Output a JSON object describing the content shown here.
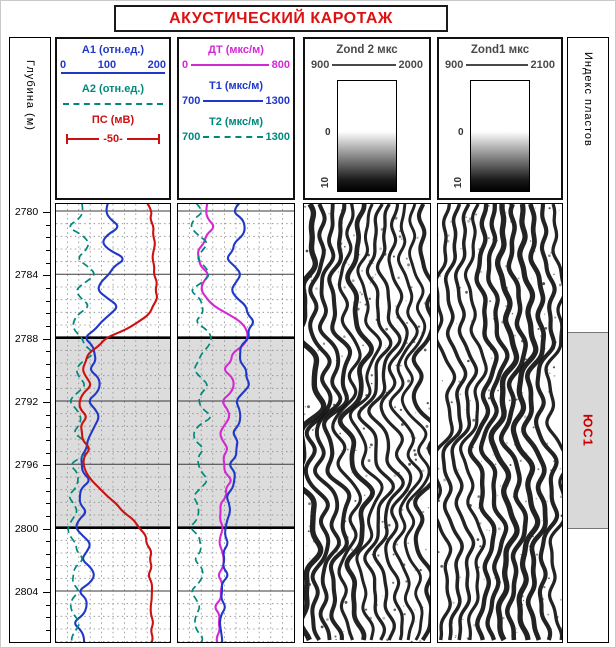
{
  "title": "АКУСТИЧЕСКИЙ КАРОТАЖ",
  "depth_column": {
    "label": "Глубина (м)",
    "ticks": [
      "2780",
      "2784",
      "2788",
      "2792",
      "2796",
      "2800",
      "2804"
    ]
  },
  "index_column": {
    "label": "Индекс пластов",
    "zone_label": "ЮС1"
  },
  "headers": {
    "track1": {
      "a1_label": "А1 (отн.ед.)",
      "a1_scale": [
        "0",
        "100",
        "200"
      ],
      "a2_label": "А2 (отн.ед.)",
      "ps_label": "ПС (мВ)",
      "ps_scale": "-50-"
    },
    "track2": {
      "dt_label": "ДТ (мкс/м)",
      "dt_scale": [
        "0",
        "800"
      ],
      "t1_label": "Т1 (мкс/м)",
      "t1_scale": [
        "700",
        "1300"
      ],
      "t2_label": "Т2 (мкс/м)",
      "t2_scale": [
        "700",
        "1300"
      ]
    },
    "track3": {
      "title": "Zond 2 мкс",
      "scale": [
        "900",
        "2000"
      ],
      "gradient_ticks": [
        "0",
        "10"
      ]
    },
    "track4": {
      "title": "Zond1 мкс",
      "scale": [
        "900",
        "2100"
      ],
      "gradient_ticks": [
        "0",
        "10"
      ]
    }
  },
  "colors": {
    "title": "#dd1111",
    "a1": "#2038c8",
    "a2": "#00897b",
    "ps": "#cc1111",
    "dt": "#d428d4",
    "t1": "#2038c8",
    "t2": "#00897b",
    "zone_fill": "#dcdcdc",
    "index_red": "#cc0000"
  },
  "chart_data": {
    "type": "line",
    "title": "АКУСТИЧЕСКИЙ КАРОТАЖ",
    "depth_axis": {
      "label": "Глубина (м)",
      "units": "м",
      "start": 2779,
      "step": 1,
      "ticks": [
        2780,
        2784,
        2788,
        2792,
        2796,
        2800,
        2804
      ]
    },
    "zone": {
      "name": "ЮС1",
      "top": 2788,
      "bottom": 2800
    },
    "tracks": [
      {
        "name": "Track 1",
        "series": [
          {
            "name": "А1",
            "units": "отн.ед.",
            "range": [
              0,
              200
            ],
            "color_key": "a1",
            "style": "solid",
            "values_frac": [
              0.5,
              0.42,
              0.55,
              0.38,
              0.6,
              0.45,
              0.35,
              0.55,
              0.4,
              0.25,
              0.35,
              0.3,
              0.4,
              0.28,
              0.38,
              0.3,
              0.25,
              0.2,
              0.28,
              0.18,
              0.25,
              0.15,
              0.3,
              0.22,
              0.35,
              0.2,
              0.28,
              0.15,
              0.25,
              0.2
            ]
          },
          {
            "name": "А2",
            "units": "отн.ед.",
            "range": [
              0,
              200
            ],
            "color_key": "a2",
            "style": "dashed",
            "values_frac": [
              0.15,
              0.25,
              0.1,
              0.3,
              0.18,
              0.35,
              0.15,
              0.28,
              0.12,
              0.2,
              0.32,
              0.15,
              0.25,
              0.1,
              0.22,
              0.15,
              0.3,
              0.12,
              0.2,
              0.1,
              0.18,
              0.08,
              0.15,
              0.22,
              0.12,
              0.18,
              0.1,
              0.2,
              0.12,
              0.15
            ]
          },
          {
            "name": "ПС",
            "units": "мВ",
            "scale_per_division": 50,
            "color_key": "ps",
            "style": "solid",
            "values_frac": [
              0.82,
              0.84,
              0.86,
              0.88,
              0.86,
              0.88,
              0.9,
              0.88,
              0.75,
              0.45,
              0.28,
              0.22,
              0.3,
              0.18,
              0.25,
              0.2,
              0.28,
              0.22,
              0.3,
              0.45,
              0.6,
              0.75,
              0.82,
              0.85,
              0.83,
              0.86,
              0.84,
              0.86,
              0.85,
              0.86
            ]
          }
        ]
      },
      {
        "name": "Track 2",
        "series": [
          {
            "name": "ДТ",
            "units": "мкс/м",
            "range": [
              0,
              800
            ],
            "color_key": "dt",
            "style": "solid",
            "values_frac": [
              0.28,
              0.22,
              0.3,
              0.2,
              0.15,
              0.25,
              0.18,
              0.3,
              0.55,
              0.62,
              0.48,
              0.4,
              0.5,
              0.38,
              0.45,
              0.35,
              0.42,
              0.38,
              0.45,
              0.4,
              0.35,
              0.38,
              0.35,
              0.4,
              0.35,
              0.38,
              0.32,
              0.36,
              0.33,
              0.35
            ]
          },
          {
            "name": "Т1",
            "units": "мкс/м",
            "range": [
              700,
              1300
            ],
            "color_key": "t1",
            "style": "solid",
            "values_frac": [
              0.55,
              0.48,
              0.6,
              0.5,
              0.42,
              0.55,
              0.45,
              0.58,
              0.65,
              0.6,
              0.52,
              0.58,
              0.62,
              0.5,
              0.55,
              0.48,
              0.52,
              0.45,
              0.5,
              0.42,
              0.45,
              0.4,
              0.42,
              0.38,
              0.42,
              0.36,
              0.4,
              0.35,
              0.38,
              0.36
            ]
          },
          {
            "name": "Т2",
            "units": "мкс/м",
            "range": [
              700,
              1300
            ],
            "color_key": "t2",
            "style": "dashed",
            "values_frac": [
              0.12,
              0.2,
              0.08,
              0.25,
              0.15,
              0.28,
              0.1,
              0.22,
              0.15,
              0.3,
              0.2,
              0.12,
              0.25,
              0.15,
              0.28,
              0.1,
              0.2,
              0.15,
              0.25,
              0.12,
              0.18,
              0.1,
              0.2,
              0.14,
              0.22,
              0.1,
              0.18,
              0.12,
              0.2,
              0.15
            ]
          }
        ]
      },
      {
        "name": "Zond 2",
        "type": "vdl",
        "units": "мкс",
        "time_range": [
          900,
          2000
        ],
        "amplitude_range": [
          0,
          10
        ],
        "render": {
          "traces": 13,
          "seed": 7,
          "lambda1": 150,
          "lambda2": 48,
          "amp_base": 3,
          "amp_zone": 8,
          "speckles": 260
        }
      },
      {
        "name": "Zond1",
        "type": "vdl",
        "units": "мкс",
        "time_range": [
          900,
          2100
        ],
        "amplitude_range": [
          0,
          10
        ],
        "render": {
          "traces": 12,
          "seed": 29,
          "lambda1": 185,
          "lambda2": 58,
          "amp_base": 3,
          "amp_zone": 6,
          "speckles": 240
        }
      }
    ]
  }
}
